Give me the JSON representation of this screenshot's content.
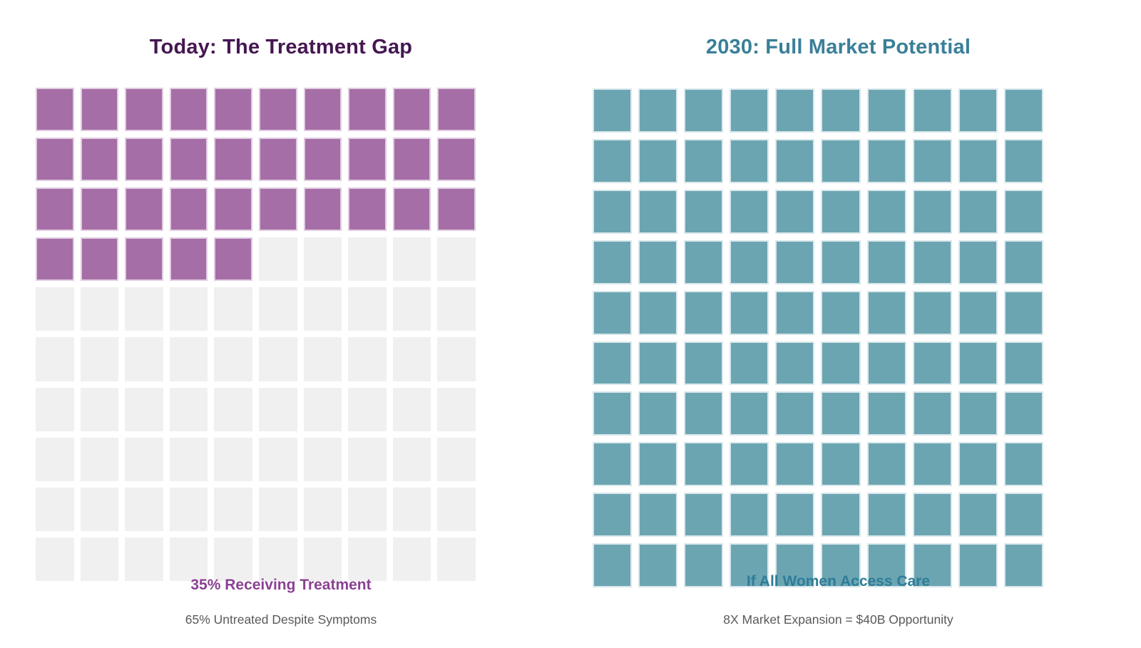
{
  "chart_data": [
    {
      "type": "waffle",
      "title": "Today: The Treatment Gap",
      "title_color": "#451752",
      "rows": 10,
      "cols": 10,
      "total_cells": 100,
      "filled": 35,
      "filled_percent": 35,
      "fill_order": "left-to-right, top-to-bottom",
      "filled_color": "#a56ea6",
      "filled_border_color": "#e0cbe1",
      "empty_color": "#f1f0f1",
      "caption": "35% Receiving Treatment",
      "caption_color": "#8a4192",
      "subcaption": "65% Untreated Despite Symptoms",
      "subcaption_color": "#595959"
    },
    {
      "type": "waffle",
      "title": "2030: Full Market Potential",
      "title_color": "#3a7f98",
      "rows": 10,
      "cols": 10,
      "total_cells": 100,
      "filled": 100,
      "filled_percent": 100,
      "fill_order": "left-to-right, top-to-bottom",
      "filled_color": "#6ca5b2",
      "filled_border_color": "#d9e8ec",
      "empty_color": "#f1f0f1",
      "caption": "If All Women Access Care",
      "caption_color": "#2e7d98",
      "subcaption": "8X Market Expansion = $40B Opportunity",
      "subcaption_color": "#595959"
    }
  ],
  "layout": {
    "legend": "none",
    "grid_background": "#ffffff"
  }
}
